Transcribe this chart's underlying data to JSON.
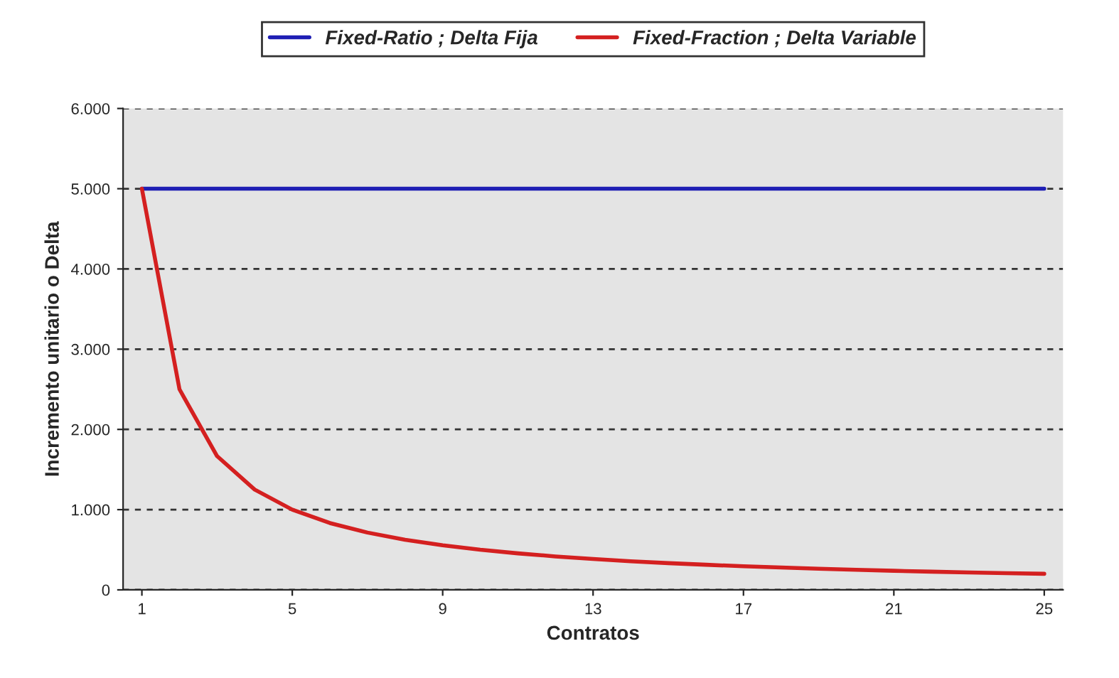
{
  "chart_data": {
    "type": "line",
    "xlabel": "Contratos",
    "ylabel": "Incremento unitario o Delta",
    "x": [
      1,
      2,
      3,
      4,
      5,
      6,
      7,
      8,
      9,
      10,
      11,
      12,
      13,
      14,
      15,
      16,
      17,
      18,
      19,
      20,
      21,
      22,
      23,
      24,
      25
    ],
    "series": [
      {
        "name": "Fixed-Ratio ; Delta Fija",
        "color": "#1f1fb4",
        "values": [
          5000,
          5000,
          5000,
          5000,
          5000,
          5000,
          5000,
          5000,
          5000,
          5000,
          5000,
          5000,
          5000,
          5000,
          5000,
          5000,
          5000,
          5000,
          5000,
          5000,
          5000,
          5000,
          5000,
          5000,
          5000
        ]
      },
      {
        "name": "Fixed-Fraction ; Delta Variable",
        "color": "#d42020",
        "values": [
          5000,
          2500,
          1667,
          1250,
          1000,
          833,
          714,
          625,
          556,
          500,
          455,
          417,
          385,
          357,
          333,
          313,
          294,
          278,
          263,
          250,
          238,
          227,
          217,
          208,
          200
        ]
      }
    ],
    "xlim": [
      0.5,
      25.5
    ],
    "xticks": [
      1,
      5,
      9,
      13,
      17,
      21,
      25
    ],
    "ylim": [
      0,
      6000
    ],
    "yticks": [
      0,
      {
        "value": 1000,
        "label": "1.000"
      },
      {
        "value": 2000,
        "label": "2.000"
      },
      {
        "value": 3000,
        "label": "3.000"
      },
      {
        "value": 4000,
        "label": "4.000"
      },
      {
        "value": 5000,
        "label": "5.000"
      },
      {
        "value": 6000,
        "label": "6.000"
      }
    ],
    "grid": "y",
    "legend": "top",
    "line_style": "solid",
    "marker": "none"
  }
}
